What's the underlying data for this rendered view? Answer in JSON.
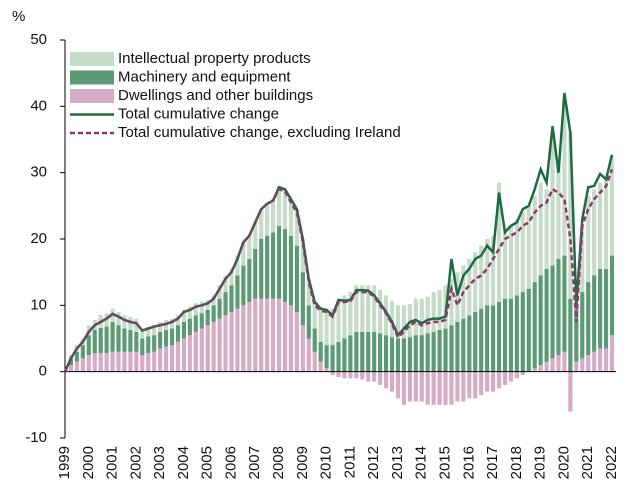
{
  "chart_data": {
    "type": "stacked-bar-line",
    "y_label": "%",
    "categories": [
      "1999",
      null,
      null,
      null,
      "2000",
      null,
      null,
      null,
      "2001",
      null,
      null,
      null,
      "2002",
      null,
      null,
      null,
      "2003",
      null,
      null,
      null,
      "2004",
      null,
      null,
      null,
      "2005",
      null,
      null,
      null,
      "2006",
      null,
      null,
      null,
      "2007",
      null,
      null,
      null,
      "2008",
      null,
      null,
      null,
      "2009",
      null,
      null,
      null,
      "2010",
      null,
      null,
      null,
      "2011",
      null,
      null,
      null,
      "2012",
      null,
      null,
      null,
      "2013",
      null,
      null,
      null,
      "2014",
      null,
      null,
      null,
      "2015",
      null,
      null,
      null,
      "2016",
      null,
      null,
      null,
      "2017",
      null,
      null,
      null,
      "2018",
      null,
      null,
      null,
      "2019",
      null,
      null,
      null,
      "2020",
      null,
      null,
      null,
      "2021",
      null,
      null,
      null,
      "2022"
    ],
    "ylim": [
      -10,
      50
    ],
    "yticks": [
      -10,
      0,
      10,
      20,
      30,
      40,
      50
    ],
    "series": [
      {
        "name": "Intellectual property products",
        "kind": "bar",
        "color": "#c6dcc9",
        "values": [
          0,
          0.5,
          1,
          1,
          1.5,
          1.5,
          2,
          2,
          2,
          2,
          2,
          2,
          2,
          1.5,
          1.5,
          1.5,
          1.5,
          1.5,
          1.5,
          1.5,
          1.8,
          1.8,
          1.8,
          1.8,
          1.5,
          1.5,
          2,
          2.5,
          2.5,
          3,
          3.5,
          3.5,
          4,
          4.5,
          5,
          5,
          6,
          6,
          5.5,
          5.5,
          5,
          4,
          4,
          5,
          5.5,
          5.5,
          6,
          6.5,
          6.5,
          7,
          7,
          7,
          7,
          6.5,
          6,
          5.5,
          5,
          5,
          5,
          5.5,
          5.5,
          5.5,
          6,
          6,
          6.5,
          7,
          7.5,
          8,
          8.5,
          9,
          9.5,
          10,
          10.5,
          18,
          10.5,
          11,
          11.5,
          12,
          12.5,
          13,
          14,
          12,
          20,
          14,
          24,
          25,
          2,
          10,
          13,
          13,
          13,
          13.5,
          15
        ]
      },
      {
        "name": "Machinery and equipment",
        "kind": "bar",
        "color": "#5b9a74",
        "values": [
          0,
          1,
          1.5,
          2,
          3,
          3.5,
          3.8,
          4,
          4.5,
          4,
          3.5,
          3.3,
          3,
          2.5,
          2.5,
          2.5,
          2.5,
          2.5,
          2.5,
          2.5,
          2.5,
          2.5,
          2.5,
          2.3,
          2.3,
          2.5,
          3,
          3.5,
          4,
          5,
          6,
          6.5,
          7.5,
          9,
          9.5,
          10,
          11,
          11,
          10.5,
          10,
          8,
          5,
          3.5,
          3,
          3.5,
          4,
          4.5,
          5,
          5.5,
          6,
          6,
          6,
          6,
          5.8,
          5.5,
          5.2,
          5,
          5,
          5.2,
          5.5,
          5.5,
          5.8,
          6,
          6.3,
          6.5,
          7,
          7.5,
          8,
          8.5,
          9,
          9.5,
          10,
          10,
          10.5,
          11,
          11,
          11.5,
          12,
          12.5,
          13,
          13.5,
          14,
          14,
          14.5,
          14.5,
          11,
          8,
          10,
          11,
          11.5,
          12,
          12,
          12
        ]
      },
      {
        "name": "Dwellings and other buildings",
        "kind": "bar",
        "color": "#d6abc6",
        "values": [
          0,
          1,
          1.5,
          2,
          2.5,
          2.8,
          2.8,
          2.8,
          3,
          3,
          3,
          3,
          3,
          2.5,
          2.8,
          3,
          3.5,
          3.8,
          4,
          4.5,
          5,
          5.5,
          6,
          6.5,
          7,
          7.5,
          8,
          8.5,
          9,
          9.5,
          10,
          10.5,
          11,
          11,
          11,
          11,
          11,
          10.5,
          10,
          9,
          7,
          5,
          3,
          1.5,
          0.5,
          -0.5,
          -0.8,
          -1,
          -1,
          -1,
          -1.2,
          -1.5,
          -1.5,
          -2,
          -2.5,
          -3,
          -4,
          -5,
          -4.5,
          -4.5,
          -4.5,
          -5,
          -5,
          -5,
          -5,
          -5,
          -4.5,
          -4.5,
          -4,
          -4,
          -3.5,
          -3,
          -3,
          -2.5,
          -2,
          -1.5,
          -1,
          -0.5,
          0,
          0.5,
          1,
          1.5,
          2,
          2.5,
          3,
          -6,
          1.5,
          2,
          2.5,
          3,
          3.5,
          3.5,
          5.5
        ]
      },
      {
        "name": "Total cumulative change",
        "kind": "line",
        "color": "#1d6b42",
        "values": [
          0,
          2,
          3.5,
          4.5,
          6,
          7,
          7.5,
          8,
          8.7,
          8.3,
          7.8,
          7.5,
          7.3,
          6.2,
          6.5,
          6.8,
          7,
          7.2,
          7.5,
          8,
          9,
          9.3,
          9.8,
          10,
          10.3,
          11,
          12.5,
          14,
          15,
          17,
          19.5,
          20.5,
          22.5,
          24.5,
          25.3,
          25.8,
          27.8,
          27.5,
          26,
          24.5,
          20,
          14,
          10.5,
          9.5,
          9.3,
          8.5,
          10.8,
          10.7,
          10.8,
          12.3,
          12.3,
          12.2,
          11.5,
          10.3,
          9,
          7.5,
          5.5,
          6.5,
          7.5,
          7.8,
          7.3,
          7.8,
          8,
          8,
          8.3,
          17,
          11.5,
          14.5,
          15.5,
          17,
          17.5,
          19,
          18,
          27,
          21,
          22,
          22.5,
          24.5,
          25,
          27.5,
          30.5,
          28.5,
          37,
          30,
          42,
          36,
          10,
          23,
          27.8,
          28,
          29.8,
          29,
          32.7
        ]
      },
      {
        "name": "Total cumulative change, excluding Ireland",
        "kind": "line",
        "dashed": true,
        "color": "#8e3a6d",
        "values": [
          0,
          2,
          3.5,
          4.5,
          6,
          7,
          7.5,
          8,
          8.7,
          8.3,
          7.8,
          7.5,
          7.3,
          6.2,
          6.5,
          6.8,
          7,
          7.2,
          7.5,
          8,
          9,
          9.3,
          9.8,
          10,
          10.3,
          11,
          12.5,
          14,
          15,
          17,
          19.5,
          20.5,
          22.5,
          24.5,
          25.3,
          25.8,
          27.5,
          27.2,
          25.5,
          24,
          19.5,
          13.5,
          10,
          9.2,
          9,
          8.3,
          10.5,
          10.5,
          10.6,
          12,
          12,
          12,
          11.3,
          10,
          8.8,
          7.2,
          5.2,
          6,
          7,
          7.5,
          7,
          7.3,
          7.5,
          7.5,
          7.8,
          12.5,
          10,
          12,
          13,
          14,
          14.5,
          15.5,
          17,
          18.5,
          20,
          20.5,
          21,
          22,
          22.5,
          24,
          25,
          25.5,
          27.5,
          27,
          26,
          20,
          7.5,
          22,
          24.5,
          26,
          27,
          28,
          30.5
        ]
      }
    ]
  }
}
